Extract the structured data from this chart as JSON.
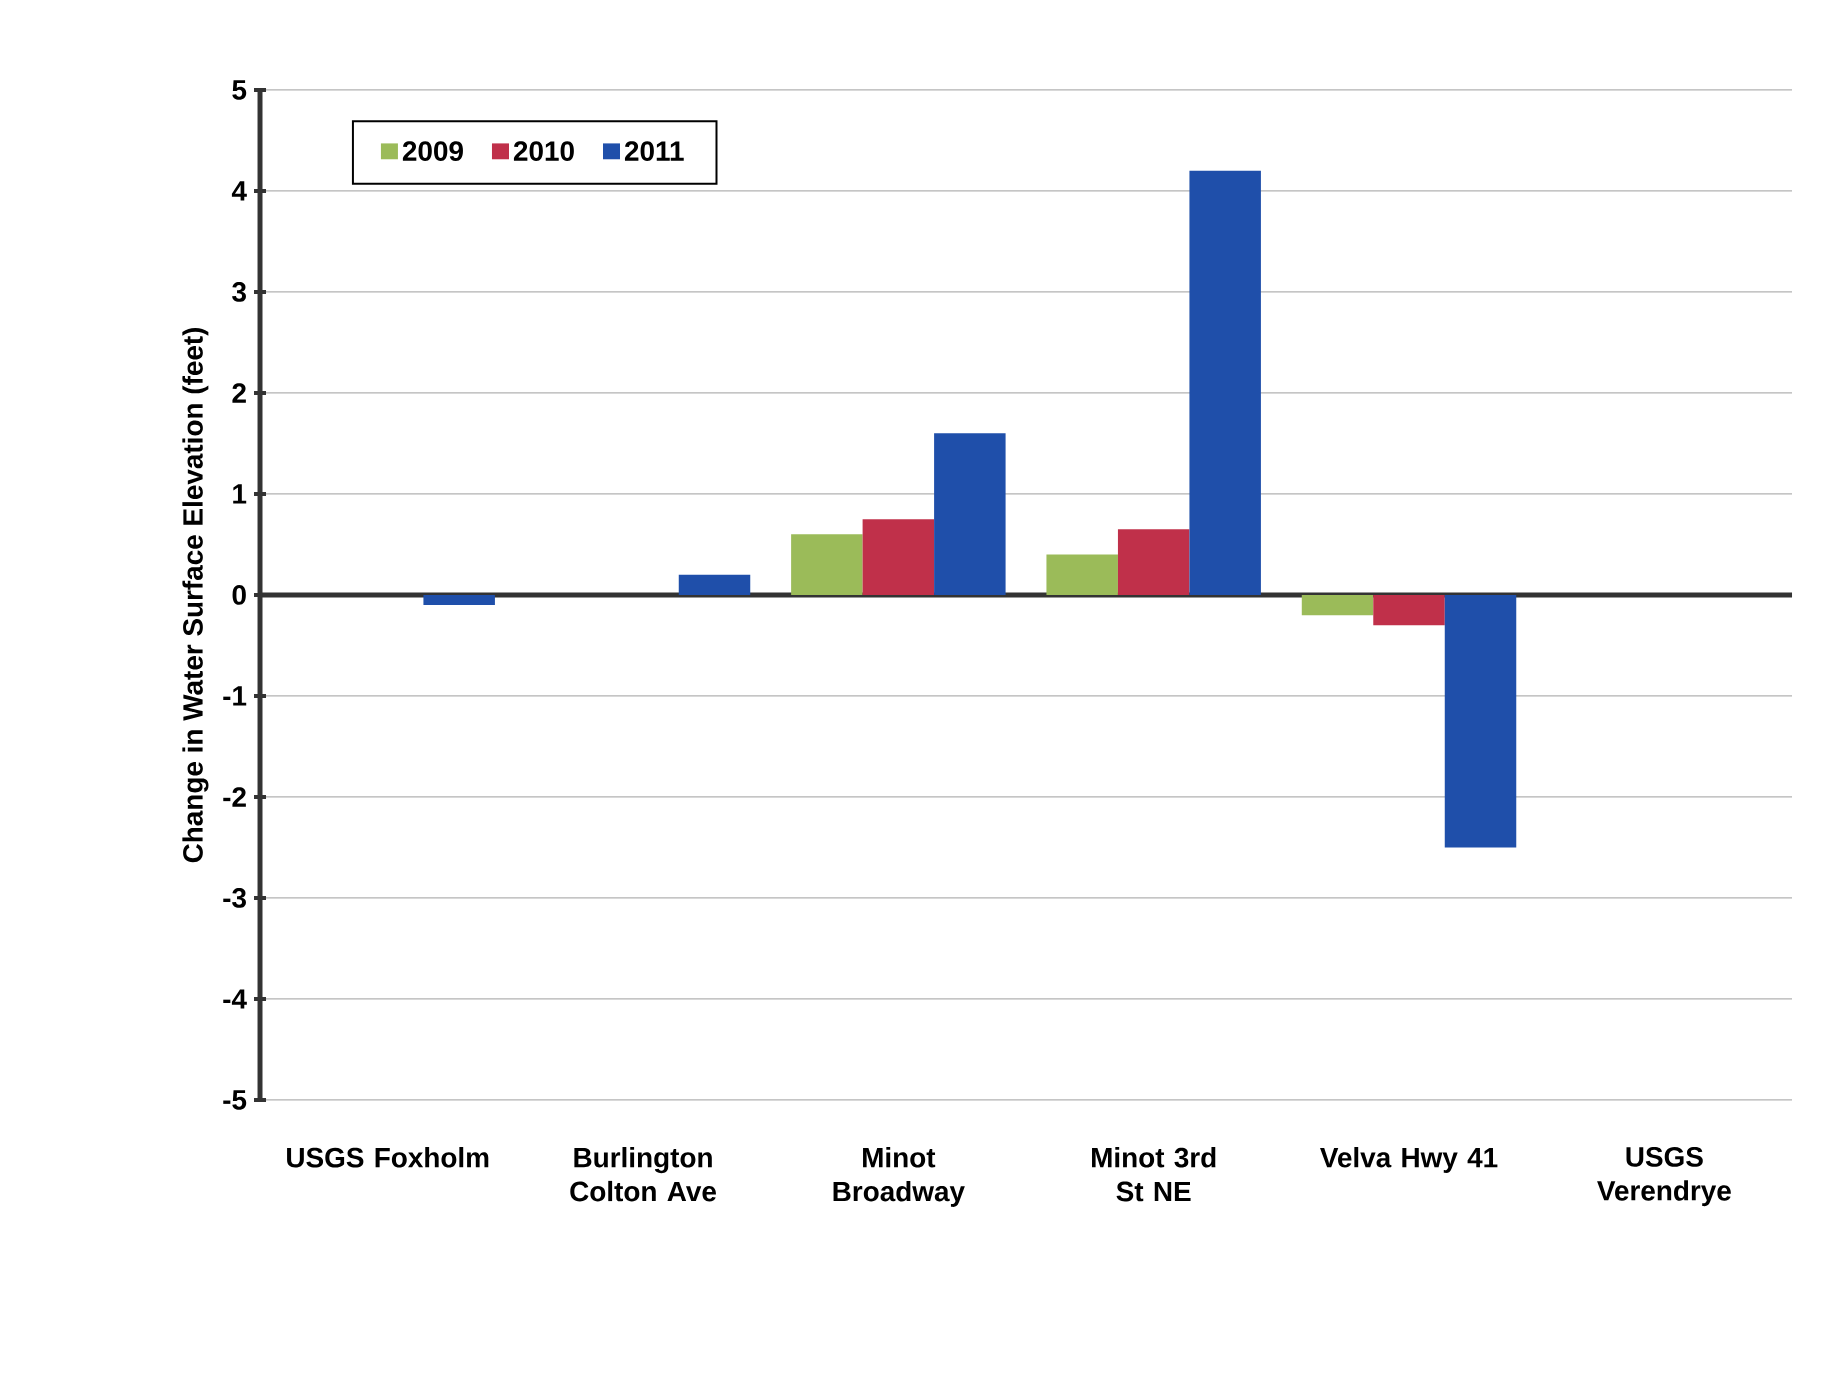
{
  "chart_data": {
    "type": "bar",
    "ylabel": "Change in Water Surface Elevation (feet)",
    "categories": [
      "USGS Foxholm",
      "Burlington Colton Ave",
      "Minot Broadway",
      "Minot 3rd St NE",
      "Velva Hwy 41",
      "USGS Verendrye"
    ],
    "series": [
      {
        "name": "2009",
        "color": "#9bbb59",
        "values": [
          null,
          null,
          0.6,
          0.4,
          -0.2,
          null
        ]
      },
      {
        "name": "2010",
        "color": "#c0304a",
        "values": [
          null,
          null,
          0.75,
          0.65,
          -0.3,
          null
        ]
      },
      {
        "name": "2011",
        "color": "#1f4faa",
        "values": [
          -0.1,
          0.2,
          1.6,
          4.2,
          -2.5,
          null
        ]
      }
    ],
    "ylim": [
      -5,
      5
    ],
    "yticks": [
      -5,
      -4,
      -3,
      -2,
      -1,
      0,
      1,
      2,
      3,
      4,
      5
    ],
    "grid": "y",
    "legend": "top left"
  }
}
